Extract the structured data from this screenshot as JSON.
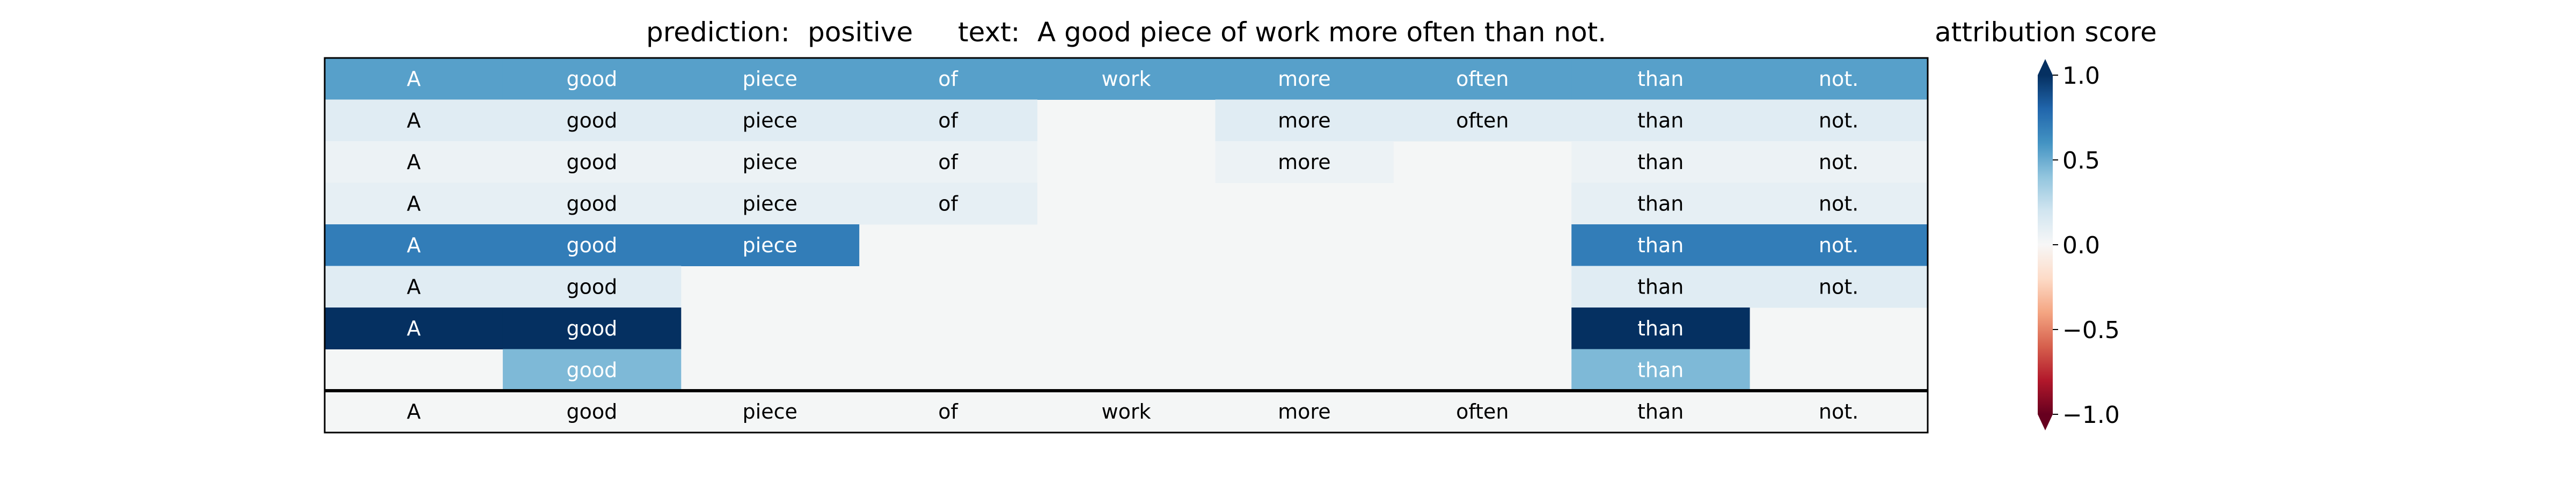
{
  "chart_data": {
    "type": "heatmap",
    "title_prediction_label": "prediction:",
    "title_prediction_value": "positive",
    "title_text_label": "text:",
    "title_text_value": "A good piece of work more often than not.",
    "colorbar_title": "attribution score",
    "colorbar_ticks": [
      "1.0",
      "0.5",
      "0.0",
      "−0.5",
      "−1.0"
    ],
    "colorbar_tick_values": [
      1.0,
      0.5,
      0.0,
      -0.5,
      -1.0
    ],
    "value_range": [
      -1.0,
      1.0
    ],
    "tokens": [
      "A",
      "good",
      "piece",
      "of",
      "work",
      "more",
      "often",
      "than",
      "not."
    ],
    "rows": [
      [
        0.55,
        0.55,
        0.55,
        0.55,
        0.55,
        0.55,
        0.55,
        0.55,
        0.55
      ],
      [
        0.12,
        0.12,
        0.12,
        0.12,
        null,
        0.12,
        0.12,
        0.12,
        0.12
      ],
      [
        0.06,
        0.06,
        0.06,
        0.06,
        null,
        0.06,
        null,
        0.06,
        0.06
      ],
      [
        0.09,
        0.09,
        0.09,
        0.09,
        null,
        null,
        null,
        0.09,
        0.09
      ],
      [
        0.7,
        0.7,
        0.7,
        null,
        null,
        null,
        null,
        0.7,
        0.7
      ],
      [
        0.12,
        0.12,
        null,
        null,
        null,
        null,
        null,
        0.12,
        0.12
      ],
      [
        1.0,
        1.0,
        null,
        null,
        null,
        null,
        null,
        1.0,
        null
      ],
      [
        null,
        0.45,
        null,
        null,
        null,
        null,
        null,
        0.45,
        null
      ]
    ],
    "bottom_row": [
      "A",
      "good",
      "piece",
      "of",
      "work",
      "more",
      "often",
      "than",
      "not."
    ]
  }
}
